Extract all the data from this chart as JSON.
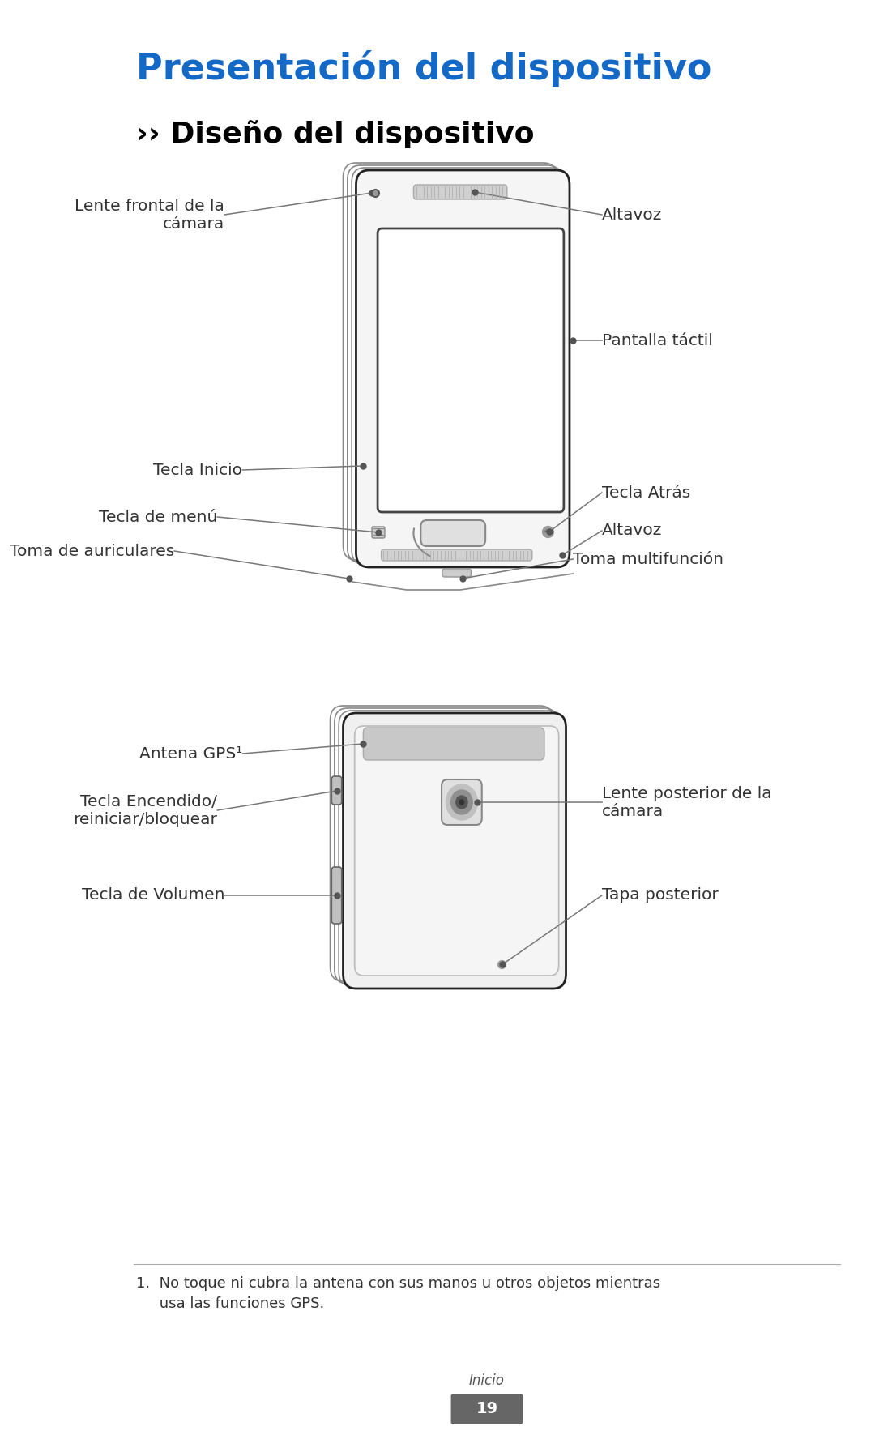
{
  "title": "Presentación del dispositivo",
  "subtitle": "›› Diseño del dispositivo",
  "title_color": "#1469C7",
  "subtitle_color": "#000000",
  "bg_color": "#ffffff",
  "label_color": "#333333",
  "line_color": "#777777",
  "footnote_line_color": "#aaaaaa",
  "footnote_text": "1.  No toque ni cubra la antena con sus manos u otros objetos mientras\n     usa las funciones GPS.",
  "page_label": "Inicio",
  "page_number": "19",
  "page_box_color": "#666666"
}
